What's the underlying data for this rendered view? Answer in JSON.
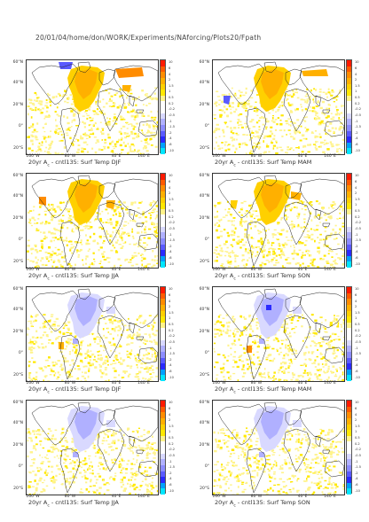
{
  "header": "20/01/04/home/don/WORK/Experiments/NAforcing/Plots20/Fpath",
  "ylabels": [
    "60°N",
    "40°N",
    "20°N",
    "0°",
    "20°S"
  ],
  "xlabels": [
    "160°W",
    "80°W",
    "40°E",
    "140°E"
  ],
  "colorbar": {
    "labels": [
      "10",
      "6",
      "4",
      "2",
      "1.5",
      "1",
      "0.5",
      "0.2",
      "-0.2",
      "-0.5",
      "-1",
      "-1.5",
      "-2",
      "-4",
      "-6",
      "-10"
    ],
    "colors": [
      "#ff1a00",
      "#ff5a00",
      "#ff8c00",
      "#ffb000",
      "#ffd000",
      "#ffe800",
      "#fff38a",
      "#ffffff",
      "#ffffff",
      "#d9d9ff",
      "#b0b0ff",
      "#8c8cff",
      "#5a5aff",
      "#2a2aff",
      "#00a0ff",
      "#00e6ff"
    ]
  },
  "panels": [
    {
      "caption": "20yr A<sub>c</sub> - cntl135: Surf Temp DJF",
      "cap_pre": "20yr A",
      "cap_sub": "c",
      "cap_post": " - cntl135: Surf Temp DJF",
      "mode": "warm",
      "variant": "djf"
    },
    {
      "cap_pre": "20yr A",
      "cap_sub": "c",
      "cap_post": " - cntl135: Surf Temp MAM",
      "mode": "warm",
      "variant": "mam"
    },
    {
      "cap_pre": "20yr A",
      "cap_sub": "c",
      "cap_post": " - cntl135: Surf Temp JJA",
      "mode": "warm",
      "variant": "jja"
    },
    {
      "cap_pre": "20yr A",
      "cap_sub": "c",
      "cap_post": " - cntl135: Surf Temp SON",
      "mode": "warm",
      "variant": "son"
    },
    {
      "cap_pre": "20yr A",
      "cap_sub": "c",
      "cap_post": " - cntl135: Surf Temp DJF",
      "mode": "cool",
      "variant": "djf"
    },
    {
      "cap_pre": "20yr A",
      "cap_sub": "c",
      "cap_post": " - cntl135: Surf Temp MAM",
      "mode": "cool",
      "variant": "mam"
    },
    {
      "cap_pre": "20yr A",
      "cap_sub": "c",
      "cap_post": " - cntl135: Surf Temp JJA",
      "mode": "cool",
      "variant": "jja"
    },
    {
      "cap_pre": "20yr A",
      "cap_sub": "c",
      "cap_post": " - cntl135: Surf Temp SON",
      "mode": "cool",
      "variant": "son"
    }
  ]
}
